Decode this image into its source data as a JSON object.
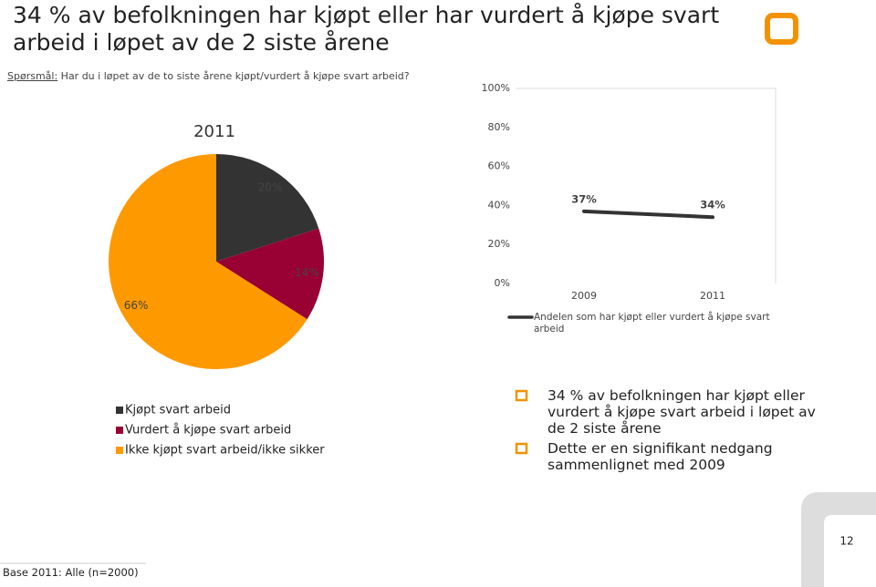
{
  "slide": {
    "title": "34 % av befolkningen har kjøpt eller har vurdert å kjøpe svart arbeid i løpet av de 2 siste årene",
    "question_label": "Spørsmål:",
    "question": "Har du i løpet av de to siste årene kjøpt/vurdert å kjøpe svart arbeid?",
    "bullets": [
      "34 % av befolkningen har kjøpt eller vurdert å kjøpe svart arbeid i løpet av de 2 siste årene",
      "Dette er en signifikant nedgang sammenlignet med 2009"
    ],
    "footer": "Base 2011: Alle (n=2000)",
    "page_number": "12"
  },
  "chart_data": [
    {
      "type": "pie",
      "title": "2011",
      "categories": [
        "Kjøpt svart arbeid",
        "Vurdert å kjøpe svart arbeid",
        "Ikke kjøpt svart arbeid/ikke sikker"
      ],
      "values": [
        20,
        14,
        66
      ],
      "value_labels": [
        "20%",
        "14%",
        "66%"
      ],
      "colors": [
        "#333333",
        "#990033",
        "#ff9900"
      ]
    },
    {
      "type": "line",
      "categories": [
        "2009",
        "2011"
      ],
      "series": [
        {
          "name": "Andelen som har kjøpt eller vurdert å kjøpe svart arbeid",
          "color": "#333333",
          "values": [
            37,
            34
          ],
          "value_labels": [
            "37%",
            "34%"
          ]
        }
      ],
      "ylim": [
        0,
        100
      ],
      "yticks": [
        {
          "value": 0,
          "label": "0%"
        },
        {
          "value": 20,
          "label": "20%"
        },
        {
          "value": 40,
          "label": "40%"
        },
        {
          "value": 60,
          "label": "60%"
        },
        {
          "value": 80,
          "label": "80%"
        },
        {
          "value": 100,
          "label": "100%"
        }
      ],
      "grid": false
    }
  ]
}
